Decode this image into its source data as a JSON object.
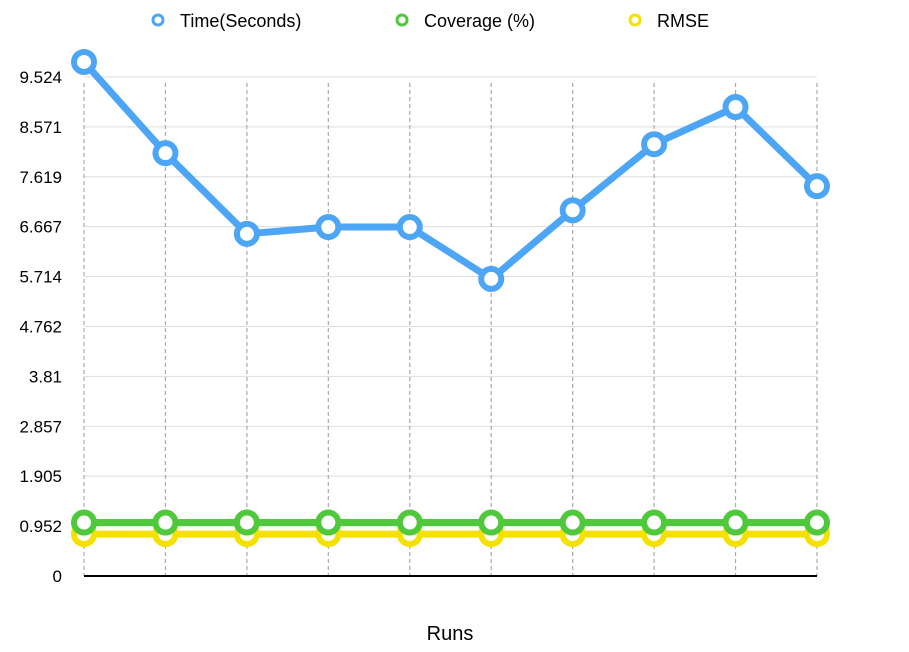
{
  "chart_data": {
    "type": "line",
    "xlabel": "Runs",
    "ylabel": "",
    "ylim": [
      0,
      10
    ],
    "yticks": [
      "0",
      "0.952",
      "1.905",
      "2.857",
      "3.81",
      "4.762",
      "5.714",
      "6.667",
      "7.619",
      "8.571",
      "9.524"
    ],
    "ytick_values": [
      0,
      0.952,
      1.905,
      2.857,
      3.81,
      4.762,
      5.714,
      6.667,
      7.619,
      8.571,
      9.524
    ],
    "x": [
      1,
      2,
      3,
      4,
      5,
      6,
      7,
      8,
      9,
      10
    ],
    "grid": true,
    "legend_position": "top",
    "series": [
      {
        "name": "Time(Seconds)",
        "color": "#4da6f5",
        "values": [
          9.81,
          8.07,
          6.53,
          6.66,
          6.66,
          5.67,
          6.98,
          8.24,
          8.95,
          7.44
        ]
      },
      {
        "name": "Coverage (%)",
        "color": "#4fc83c",
        "values": [
          1.02,
          1.02,
          1.02,
          1.02,
          1.02,
          1.02,
          1.02,
          1.02,
          1.02,
          1.02
        ]
      },
      {
        "name": "RMSE",
        "color": "#f5e100",
        "values": [
          0.8,
          0.8,
          0.8,
          0.8,
          0.8,
          0.8,
          0.8,
          0.8,
          0.8,
          0.8
        ]
      }
    ]
  }
}
